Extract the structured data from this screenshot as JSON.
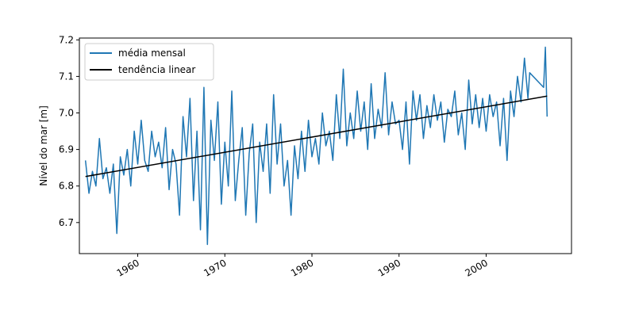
{
  "chart_data": {
    "type": "line",
    "title": "",
    "xlabel": "",
    "ylabel": "Nível do mar [m]",
    "xlim": [
      1953.3,
      2009.8
    ],
    "ylim": [
      6.615,
      7.205
    ],
    "x_ticks": [
      1960,
      1970,
      1980,
      1990,
      2000
    ],
    "x_tick_labels": [
      "1960",
      "1970",
      "1980",
      "1990",
      "2000"
    ],
    "y_ticks": [
      6.7,
      6.8,
      6.9,
      7.0,
      7.1,
      7.2
    ],
    "y_tick_labels": [
      "6.7",
      "6.8",
      "6.9",
      "7.0",
      "7.1",
      "7.2"
    ],
    "grid": false,
    "legend_position": "top-left",
    "series": [
      {
        "name": "média mensal",
        "color": "#1f77b4",
        "x": [
          1954.0,
          1954.4,
          1954.8,
          1955.2,
          1955.6,
          1956.0,
          1956.4,
          1956.8,
          1957.2,
          1957.6,
          1958.0,
          1958.4,
          1958.8,
          1959.2,
          1959.6,
          1960.0,
          1960.4,
          1960.8,
          1961.2,
          1961.6,
          1962.0,
          1962.4,
          1962.8,
          1963.2,
          1963.6,
          1964.0,
          1964.4,
          1964.8,
          1965.2,
          1965.6,
          1966.0,
          1966.4,
          1966.8,
          1967.2,
          1967.6,
          1968.0,
          1968.4,
          1968.8,
          1969.2,
          1969.6,
          1970.0,
          1970.4,
          1970.8,
          1971.2,
          1971.6,
          1972.0,
          1972.4,
          1972.8,
          1973.2,
          1973.6,
          1974.0,
          1974.4,
          1974.8,
          1975.2,
          1975.6,
          1976.0,
          1976.4,
          1976.8,
          1977.2,
          1977.6,
          1978.0,
          1978.4,
          1978.8,
          1979.2,
          1979.6,
          1980.0,
          1980.4,
          1980.8,
          1981.2,
          1981.6,
          1982.0,
          1982.4,
          1982.8,
          1983.2,
          1983.6,
          1984.0,
          1984.4,
          1984.8,
          1985.2,
          1985.6,
          1986.0,
          1986.4,
          1986.8,
          1987.2,
          1987.6,
          1988.0,
          1988.4,
          1988.8,
          1989.2,
          1989.6,
          1990.0,
          1990.4,
          1990.8,
          1991.2,
          1991.6,
          1992.0,
          1992.4,
          1992.8,
          1993.2,
          1993.6,
          1994.0,
          1994.4,
          1994.8,
          1995.2,
          1995.6,
          1996.0,
          1996.4,
          1996.8,
          1997.2,
          1997.6,
          1998.0,
          1998.4,
          1998.8,
          1999.2,
          1999.6,
          2000.0,
          2000.4,
          2000.8,
          2001.2,
          2001.6,
          2002.0,
          2002.4,
          2002.8,
          2003.2,
          2003.6,
          2004.0,
          2004.4,
          2004.8,
          2005.0,
          2006.6,
          2006.8,
          2007.0
        ],
        "y": [
          6.87,
          6.78,
          6.84,
          6.8,
          6.93,
          6.82,
          6.85,
          6.78,
          6.86,
          6.67,
          6.88,
          6.83,
          6.9,
          6.8,
          6.95,
          6.86,
          6.98,
          6.87,
          6.84,
          6.95,
          6.88,
          6.92,
          6.85,
          6.96,
          6.79,
          6.9,
          6.86,
          6.72,
          6.99,
          6.88,
          7.04,
          6.76,
          6.95,
          6.68,
          7.07,
          6.64,
          6.98,
          6.87,
          7.03,
          6.75,
          6.92,
          6.8,
          7.06,
          6.76,
          6.87,
          6.96,
          6.72,
          6.89,
          6.97,
          6.7,
          6.92,
          6.84,
          6.97,
          6.78,
          7.05,
          6.86,
          6.97,
          6.8,
          6.87,
          6.72,
          6.91,
          6.82,
          6.95,
          6.84,
          6.98,
          6.88,
          6.93,
          6.86,
          7.0,
          6.91,
          6.95,
          6.87,
          7.05,
          6.93,
          7.12,
          6.91,
          7.0,
          6.93,
          7.06,
          6.95,
          7.03,
          6.9,
          7.08,
          6.93,
          7.01,
          6.96,
          7.11,
          6.94,
          7.03,
          6.97,
          6.98,
          6.9,
          7.03,
          6.86,
          7.06,
          6.98,
          7.05,
          6.93,
          7.02,
          6.96,
          7.05,
          6.98,
          7.03,
          6.92,
          7.01,
          6.99,
          7.06,
          6.94,
          7.0,
          6.9,
          7.09,
          6.97,
          7.05,
          6.96,
          7.04,
          6.95,
          7.05,
          6.99,
          7.03,
          6.91,
          7.04,
          6.87,
          7.06,
          6.99,
          7.1,
          7.03,
          7.15,
          7.04,
          7.11,
          7.07,
          7.18,
          6.99
        ]
      },
      {
        "name": "tendência linear",
        "color": "#000000",
        "x": [
          1954.0,
          2007.0
        ],
        "y": [
          6.826,
          7.046
        ]
      }
    ]
  }
}
